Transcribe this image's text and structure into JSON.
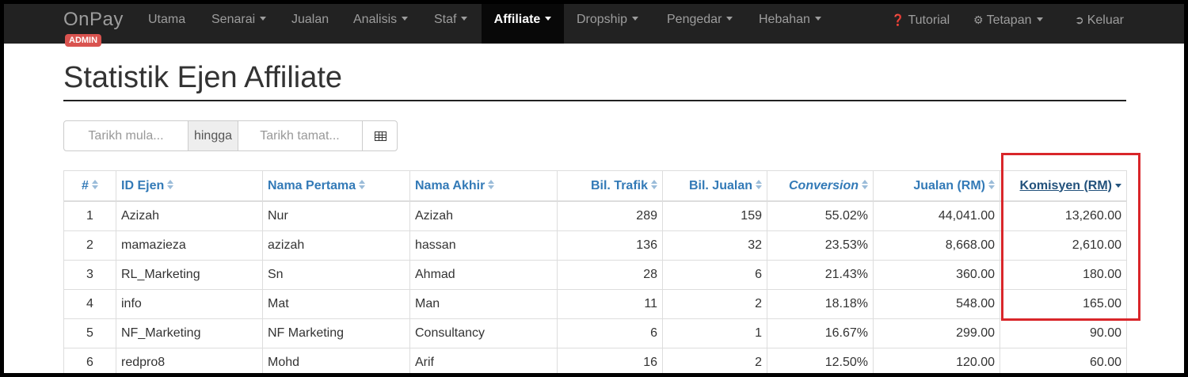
{
  "nav": {
    "brand": "OnPay",
    "badge": "ADMIN",
    "items": [
      {
        "label": "Utama",
        "caret": false
      },
      {
        "label": "Senarai",
        "caret": true
      },
      {
        "label": "Jualan",
        "caret": false
      },
      {
        "label": "Analisis",
        "caret": true
      },
      {
        "label": "Staf",
        "caret": true
      },
      {
        "label": "Affiliate",
        "caret": true,
        "active": true
      },
      {
        "label": "Dropship",
        "caret": true
      },
      {
        "label": "Pengedar",
        "caret": true
      },
      {
        "label": "Hebahan",
        "caret": true
      }
    ],
    "right": [
      {
        "label": "Tutorial",
        "icon": "question-circle-icon"
      },
      {
        "label": "Tetapan",
        "icon": "cogs-icon",
        "caret": true
      },
      {
        "label": "Keluar",
        "icon": "sign-out-icon"
      }
    ]
  },
  "page": {
    "title": "Statistik Ejen Affiliate"
  },
  "date_filter": {
    "start_placeholder": "Tarikh mula...",
    "separator": "hingga",
    "end_placeholder": "Tarikh tamat...",
    "button_icon": "table-icon"
  },
  "table": {
    "headers": [
      "#",
      "ID Ejen",
      "Nama Pertama",
      "Nama Akhir",
      "Bil. Trafik",
      "Bil. Jualan",
      "Conversion",
      "Jualan (RM)",
      "Komisyen (RM)"
    ],
    "sorted_column": "Komisyen (RM)",
    "sort_direction": "desc",
    "rows": [
      [
        "1",
        "Azizah",
        "Nur",
        "Azizah",
        "289",
        "159",
        "55.02%",
        "44,041.00",
        "13,260.00"
      ],
      [
        "2",
        "mamazieza",
        "azizah",
        "hassan",
        "136",
        "32",
        "23.53%",
        "8,668.00",
        "2,610.00"
      ],
      [
        "3",
        "RL_Marketing",
        "Sn",
        "Ahmad",
        "28",
        "6",
        "21.43%",
        "360.00",
        "180.00"
      ],
      [
        "4",
        "info",
        "Mat",
        "Man",
        "11",
        "2",
        "18.18%",
        "548.00",
        "165.00"
      ],
      [
        "5",
        "NF_Marketing",
        "NF Marketing",
        "Consultancy",
        "6",
        "1",
        "16.67%",
        "299.00",
        "90.00"
      ],
      [
        "6",
        "redpro8",
        "Mohd",
        "Arif",
        "16",
        "2",
        "12.50%",
        "120.00",
        "60.00"
      ]
    ]
  },
  "highlight_color": "#d9262a"
}
